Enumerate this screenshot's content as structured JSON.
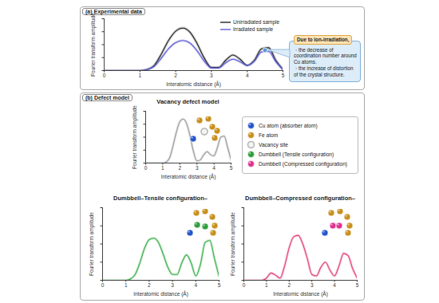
{
  "chart_data": [
    {
      "type": "line",
      "panel": "(a) Experimental data",
      "x_label": "Interatomic distance (Å)",
      "y_label": "Fourier transform amplitude",
      "xlim": [
        0,
        5
      ],
      "ylim": [
        0,
        1
      ],
      "xticks": [
        0,
        1,
        2,
        3,
        4,
        5
      ],
      "yticks": [
        0,
        0.25,
        0.5,
        0.75,
        1
      ],
      "tick_labels": "x",
      "legend": "top-right",
      "x": [
        0,
        0.2,
        0.4,
        0.6,
        0.8,
        1,
        1.2,
        1.4,
        1.6,
        1.8,
        2,
        2.2,
        2.4,
        2.6,
        2.8,
        3,
        3.2,
        3.4,
        3.6,
        3.8,
        4,
        4.2,
        4.4,
        4.6,
        4.8,
        5
      ],
      "series": [
        {
          "name": "Unirradiated sample",
          "color": "#222222",
          "values": [
            0,
            0,
            0,
            0,
            0,
            0,
            0.02,
            0.1,
            0.32,
            0.58,
            0.76,
            0.82,
            0.74,
            0.52,
            0.24,
            0.06,
            0.06,
            0.2,
            0.3,
            0.22,
            0.1,
            0.2,
            0.42,
            0.44,
            0.2,
            0.02
          ]
        },
        {
          "name": "Irradiated sample",
          "color": "#5b5bd6",
          "values": [
            0,
            0,
            0,
            0,
            0,
            0,
            0.02,
            0.08,
            0.24,
            0.42,
            0.54,
            0.58,
            0.53,
            0.38,
            0.18,
            0.05,
            0.05,
            0.15,
            0.22,
            0.17,
            0.1,
            0.18,
            0.36,
            0.37,
            0.17,
            0.02
          ]
        }
      ],
      "annotation": {
        "title": "Due to ion-irradiation,",
        "items": [
          "・the decrease of coordination number around Cu atoms.",
          "・the increase of distortion of the crystal structure."
        ]
      }
    },
    {
      "type": "line",
      "panel": "(b) Defect model",
      "title": "Vacancy defect model",
      "x_label": "Interatomic distance (Å)",
      "y_label": "Fourier transform amplitude",
      "xlim": [
        0,
        5
      ],
      "ylim": [
        0,
        1
      ],
      "xticks": [
        0,
        1,
        2,
        3,
        4,
        5
      ],
      "yticks": [
        0,
        0.25,
        0.5,
        0.75,
        1
      ],
      "tick_labels": "x",
      "x": [
        0,
        0.2,
        0.4,
        0.6,
        0.8,
        1,
        1.2,
        1.4,
        1.6,
        1.8,
        2,
        2.2,
        2.4,
        2.6,
        2.8,
        3,
        3.2,
        3.4,
        3.6,
        3.8,
        4,
        4.2,
        4.4,
        4.6,
        4.8,
        5
      ],
      "series": [
        {
          "color": "#9a9a9a",
          "values": [
            0,
            0,
            0,
            0,
            0,
            0,
            0.02,
            0.1,
            0.33,
            0.6,
            0.8,
            0.85,
            0.76,
            0.52,
            0.22,
            0.04,
            0.06,
            0.16,
            0.22,
            0.16,
            0.14,
            0.3,
            0.5,
            0.52,
            0.3,
            0.06
          ]
        }
      ]
    },
    {
      "type": "line",
      "title": "Dumbbell–Tensile configuration–",
      "x_label": "Interatomic distance (Å)",
      "y_label": "Fourier transform amplitude",
      "xlim": [
        0,
        5
      ],
      "ylim": [
        0,
        1
      ],
      "xticks": [
        0,
        1,
        2,
        3,
        4,
        5
      ],
      "yticks": [
        0,
        0.25,
        0.5,
        0.75,
        1
      ],
      "tick_labels": "x",
      "x": [
        0,
        0.2,
        0.4,
        0.6,
        0.8,
        1,
        1.2,
        1.4,
        1.6,
        1.8,
        2,
        2.2,
        2.4,
        2.6,
        2.8,
        3,
        3.2,
        3.4,
        3.6,
        3.8,
        4,
        4.2,
        4.4,
        4.6,
        4.8,
        5
      ],
      "series": [
        {
          "color": "#3cae4a",
          "values": [
            0,
            0,
            0,
            0,
            0,
            0,
            0.02,
            0.08,
            0.24,
            0.44,
            0.56,
            0.58,
            0.52,
            0.36,
            0.18,
            0.08,
            0.08,
            0.24,
            0.35,
            0.24,
            0.06,
            0.22,
            0.52,
            0.55,
            0.3,
            0.05
          ]
        }
      ]
    },
    {
      "type": "line",
      "title": "Dumbbell–Compressed configuration–",
      "x_label": "Interatomic distance (Å)",
      "y_label": "Fourier transform amplitude",
      "xlim": [
        0,
        5
      ],
      "ylim": [
        0,
        1
      ],
      "xticks": [
        0,
        1,
        2,
        3,
        4,
        5
      ],
      "yticks": [
        0,
        0.25,
        0.5,
        0.75,
        1
      ],
      "tick_labels": "x",
      "x": [
        0,
        0.2,
        0.4,
        0.6,
        0.8,
        1,
        1.2,
        1.4,
        1.6,
        1.8,
        2,
        2.2,
        2.4,
        2.6,
        2.8,
        3,
        3.2,
        3.4,
        3.6,
        3.8,
        4,
        4.2,
        4.4,
        4.6,
        4.8,
        5
      ],
      "series": [
        {
          "color": "#e0407a",
          "values": [
            0,
            0,
            0,
            0,
            0,
            0.03,
            0.1,
            0.07,
            0.03,
            0.2,
            0.45,
            0.6,
            0.62,
            0.5,
            0.3,
            0.08,
            0.06,
            0.18,
            0.25,
            0.14,
            0.06,
            0.2,
            0.37,
            0.34,
            0.16,
            0.03
          ]
        }
      ]
    }
  ],
  "atom_legend": [
    {
      "label": "Cu atom (absorber atom)",
      "color": "#2456c9"
    },
    {
      "label": "Fe atom",
      "color": "#c8901e"
    },
    {
      "label": "Vacancy site",
      "color": "#b5b5b5"
    },
    {
      "label": "Dumbbell (Tensile configuration)",
      "color": "#2e9e3c"
    },
    {
      "label": "Dumbbell (Compressed configuration)",
      "color": "#e0338f"
    }
  ]
}
